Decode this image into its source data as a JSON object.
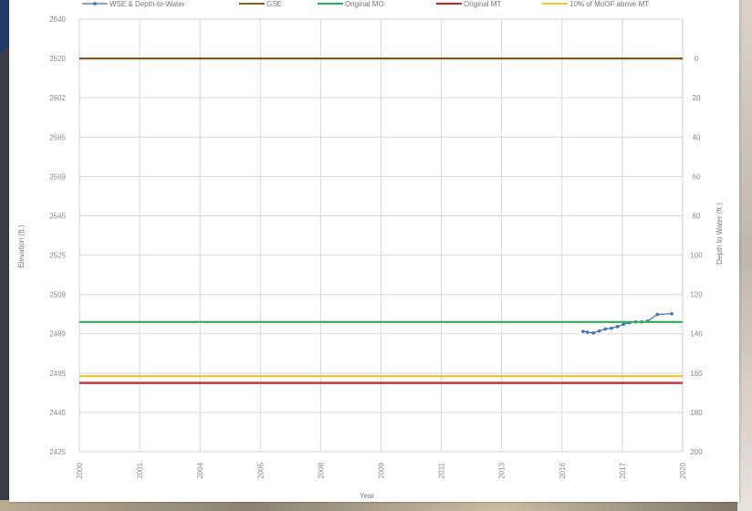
{
  "chart_data": {
    "type": "line",
    "xlabel": "Year",
    "ylabel": "Elevation (ft.)",
    "y2label": "Depth to Water (ft.)",
    "x_ticks": [
      "2000",
      "2001",
      "2004",
      "2005",
      "2008",
      "2009",
      "2011",
      "2013",
      "2016",
      "2017",
      "2020"
    ],
    "y_ticks": [
      "2425",
      "2445",
      "2465",
      "2489",
      "2509",
      "2525",
      "2545",
      "2569",
      "2585",
      "2602",
      "2620",
      "2640"
    ],
    "y2_ticks": [
      "200",
      "180",
      "160",
      "140",
      "120",
      "100",
      "80",
      "60",
      "40",
      "20",
      "0",
      ""
    ],
    "ylim_index": [
      0,
      11
    ],
    "grid": true,
    "legend_position": "top",
    "colors": {
      "wse": "#3f6fb5",
      "gse": "#8b5a1e",
      "mo": "#2fae5a",
      "mt": "#c0282b",
      "moof": "#f2c12e"
    },
    "series": [
      {
        "name": "WSE & Depth-to-Water",
        "kind": "line-markers",
        "color_key": "wse",
        "points": [
          [
            8.35,
            3.06
          ],
          [
            8.42,
            3.04
          ],
          [
            8.52,
            3.02
          ],
          [
            8.62,
            3.07
          ],
          [
            8.72,
            3.12
          ],
          [
            8.82,
            3.14
          ],
          [
            8.92,
            3.18
          ],
          [
            9.02,
            3.24
          ],
          [
            9.12,
            3.28
          ],
          [
            9.22,
            3.3
          ],
          [
            9.32,
            3.3
          ],
          [
            9.42,
            3.32
          ],
          [
            9.58,
            3.49
          ],
          [
            9.82,
            3.51
          ]
        ]
      },
      {
        "name": "GSE",
        "kind": "hline",
        "color_key": "gse",
        "y_index": 10.0
      },
      {
        "name": "Original MO",
        "kind": "hline",
        "color_key": "mo",
        "y_index": 3.3
      },
      {
        "name": "Original MT",
        "kind": "hline",
        "color_key": "mt",
        "y_index": 1.75
      },
      {
        "name": "10% of MoOF above MT",
        "kind": "hline",
        "color_key": "moof",
        "y_index": 1.92
      }
    ]
  }
}
